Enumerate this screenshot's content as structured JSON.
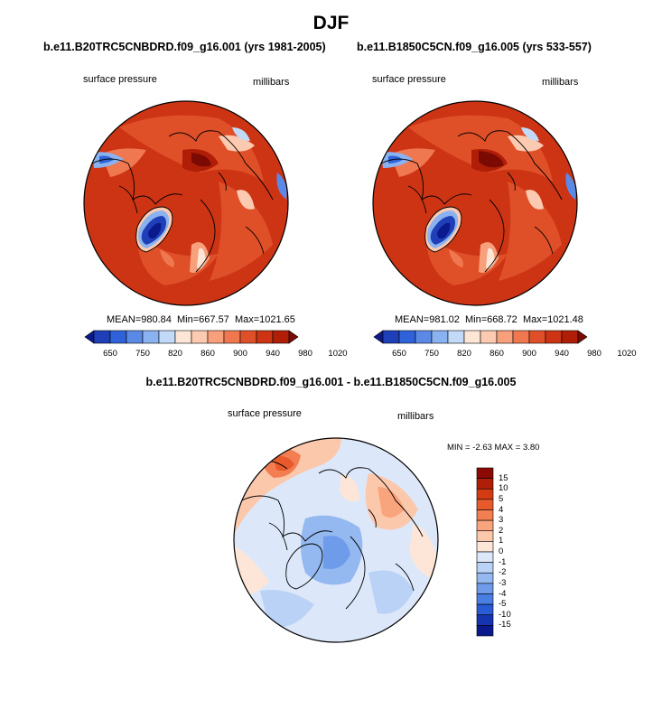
{
  "title": "DJF",
  "panels": [
    {
      "case": "b.e11.B20TRC5CNBDRD.f09_g16.001 (yrs 1981-2005)",
      "variable": "surface pressure",
      "units": "millibars",
      "stats": {
        "mean_label": "MEAN=",
        "mean": "980.84",
        "min_label": "Min=",
        "min": "667.57",
        "max_label": "Max=",
        "max": "1021.65"
      },
      "colorbar_labels": [
        "650",
        "750",
        "820",
        "860",
        "900",
        "940",
        "980",
        "1020"
      ]
    },
    {
      "case": "b.e11.B1850C5CN.f09_g16.005 (yrs 533-557)",
      "variable": "surface pressure",
      "units": "millibars",
      "stats": {
        "mean_label": "MEAN=",
        "mean": "981.02",
        "min_label": "Min=",
        "min": "668.72",
        "max_label": "Max=",
        "max": "1021.48"
      },
      "colorbar_labels": [
        "650",
        "750",
        "820",
        "860",
        "900",
        "940",
        "980",
        "1020"
      ]
    }
  ],
  "difference": {
    "title": "b.e11.B20TRC5CNBDRD.f09_g16.001 - b.e11.B1850C5CN.f09_g16.005",
    "variable": "surface pressure",
    "units": "millibars",
    "stats_text": "MIN =  -2.63 MAX =   3.80",
    "colorbar_labels": [
      "15",
      "10",
      "5",
      "4",
      "3",
      "2",
      "1",
      "0",
      "-1",
      "-2",
      "-3",
      "-4",
      "-5",
      "-10",
      "-15"
    ]
  },
  "colors": {
    "abs_scale": [
      "#0a1a8c",
      "#1e3fb8",
      "#2f62d8",
      "#5a8ae6",
      "#8ab2f0",
      "#c2daf8",
      "#fde6d6",
      "#fccab0",
      "#f8a07c",
      "#f07850",
      "#e05028",
      "#cc3414",
      "#b01e08",
      "#7a0a02"
    ],
    "diff_scale": [
      "#8c0a04",
      "#b01e08",
      "#d43a14",
      "#e85a2c",
      "#f27e52",
      "#f8a47c",
      "#fcc8ac",
      "#fde6d8",
      "#dce8fa",
      "#bad2f6",
      "#94b8f0",
      "#6e9cea",
      "#4a7ee2",
      "#2a5ad4",
      "#1434b0",
      "#0a1a8c"
    ]
  }
}
